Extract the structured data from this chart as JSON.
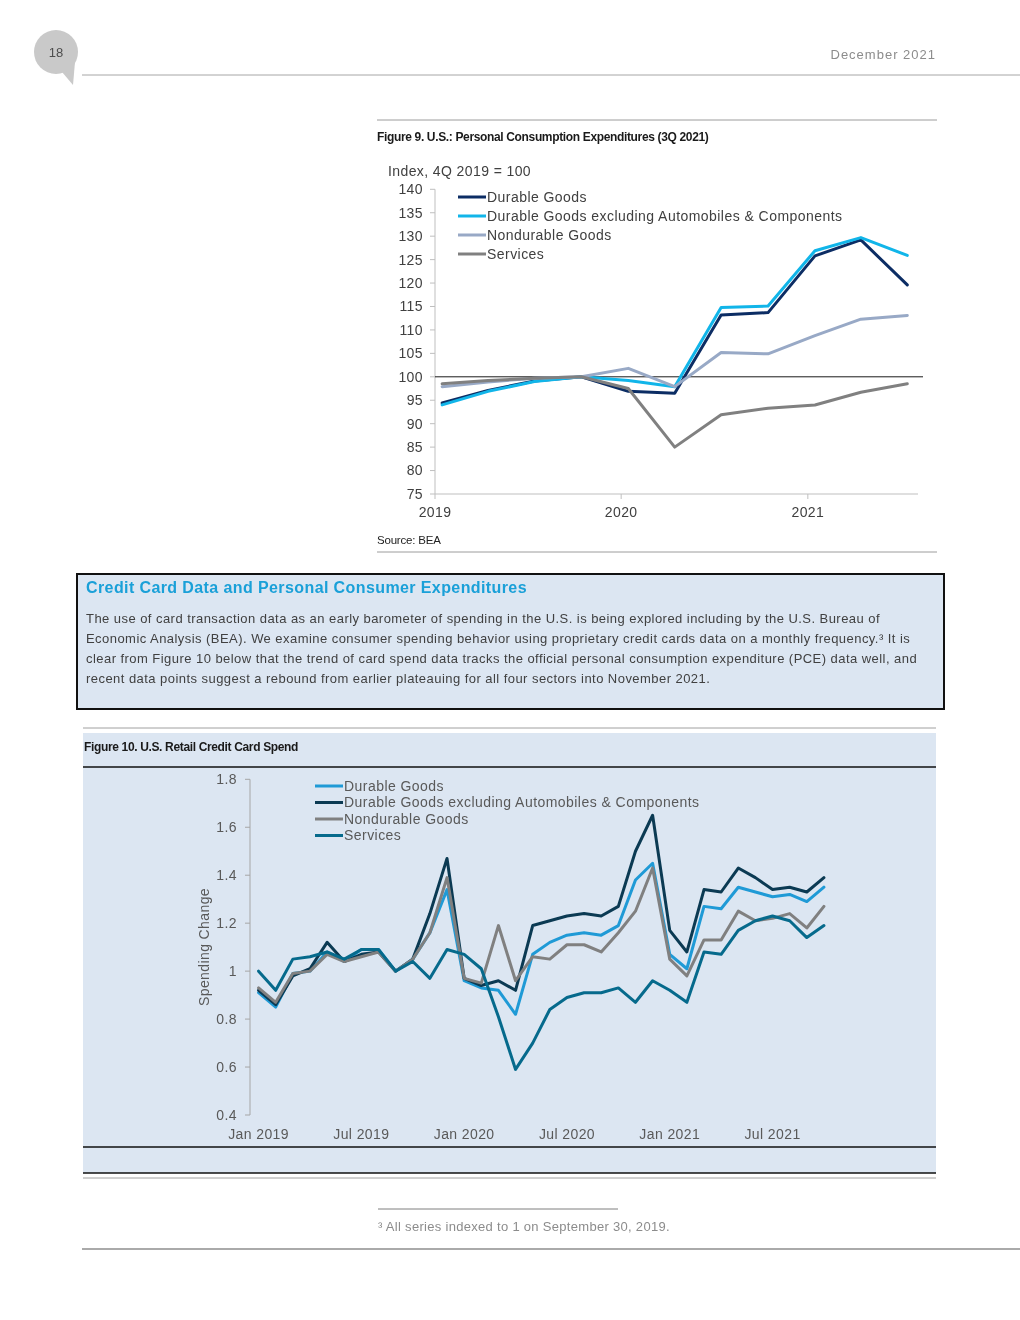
{
  "chart_data": [
    {
      "type": "line",
      "title": "Figure 9. U.S.: Personal Consumption Expenditures (3Q 2021)",
      "ylabel": "Index, 4Q 2019 = 100",
      "x": [
        "2019-01-15",
        "2019-04-15",
        "2019-07-15",
        "2019-10-15",
        "2020-01-15",
        "2020-04-15",
        "2020-07-15",
        "2020-10-15",
        "2021-01-15",
        "2021-04-15",
        "2021-07-15"
      ],
      "series": [
        {
          "name": "Durable Goods",
          "color": "#0c2d64",
          "values": [
            94.4,
            97.1,
            99.1,
            100,
            96.9,
            96.5,
            113.2,
            113.7,
            125.8,
            129.2,
            119.6
          ]
        },
        {
          "name": "Durable Goods excluding Automobiles & Components",
          "color": "#11b5e9",
          "values": [
            94.0,
            96.9,
            99.0,
            100,
            99.2,
            97.9,
            114.8,
            115.1,
            126.9,
            129.7,
            125.9
          ]
        },
        {
          "name": "Nondurable Goods",
          "color": "#98a9c6",
          "values": [
            97.9,
            98.9,
            99.7,
            100,
            101.8,
            97.9,
            105.2,
            104.9,
            108.8,
            112.3,
            113.1
          ]
        },
        {
          "name": "Services",
          "color": "#808080",
          "values": [
            98.5,
            99.2,
            99.7,
            100,
            97.5,
            85.0,
            91.9,
            93.3,
            94.0,
            96.7,
            98.5
          ]
        }
      ],
      "xlim": [
        "2019-01-01",
        "2021-08-05"
      ],
      "xticks": [
        {
          "value": "2019-01-01",
          "label": "2019"
        },
        {
          "value": "2020-01-01",
          "label": "2020"
        },
        {
          "value": "2021-01-01",
          "label": "2021"
        }
      ],
      "ylim": [
        75,
        140
      ],
      "yticks": [
        75,
        80,
        85,
        90,
        95,
        100,
        105,
        110,
        115,
        120,
        125,
        130,
        135,
        140
      ],
      "ref_lines": [
        {
          "axis": "y",
          "value": 100,
          "color": "#1a1a1a"
        }
      ],
      "legend": "top left",
      "annotations": [
        "Source: BEA",
        "18",
        "December 2021"
      ]
    },
    {
      "type": "other",
      "title": "Credit Card Data and Personal Consumer Expenditures",
      "annotations": [
        "The use of card transaction data as an early barometer of spending in the U.S. is being explored including by the U.S. Bureau of Economic Analysis (BEA). We examine consumer spending behavior using proprietary credit cards data on a monthly frequency.³ It is clear from Figure 10 below that the trend of card spend data tracks the official personal consumption expenditure (PCE) data well, and recent data points suggest a rebound from earlier plateauing for all four sectors into November 2021."
      ]
    },
    {
      "type": "line",
      "title": "Figure 10. U.S. Retail Credit Card Spend",
      "ylabel": "Spending Change",
      "categories": [
        "Jan 2019",
        null,
        null,
        null,
        null,
        null,
        "Jul 2019",
        null,
        null,
        null,
        null,
        null,
        "Jan 2020",
        null,
        null,
        null,
        null,
        null,
        "Jul 2020",
        null,
        null,
        null,
        null,
        null,
        "Jan 2021",
        null,
        null,
        null,
        null,
        null,
        "Jul 2021",
        null,
        null,
        null
      ],
      "series": [
        {
          "name": "Durable Goods",
          "color": "#1f9ad6",
          "values": [
            0.91,
            0.85,
            0.99,
            1.0,
            1.08,
            1.04,
            1.09,
            1.09,
            1.0,
            1.05,
            1.16,
            1.34,
            0.96,
            0.93,
            0.92,
            0.82,
            1.07,
            1.12,
            1.15,
            1.16,
            1.15,
            1.19,
            1.38,
            1.45,
            1.07,
            1.01,
            1.27,
            1.26,
            1.35,
            1.33,
            1.31,
            1.32,
            1.29,
            1.35
          ]
        },
        {
          "name": "Durable Goods excluding Automobiles & Components",
          "color": "#0b3a53",
          "values": [
            0.92,
            0.86,
            0.98,
            1.01,
            1.12,
            1.04,
            1.07,
            1.08,
            1.0,
            1.05,
            1.24,
            1.47,
            0.97,
            0.94,
            0.96,
            0.92,
            1.19,
            1.21,
            1.23,
            1.24,
            1.23,
            1.27,
            1.5,
            1.65,
            1.17,
            1.08,
            1.34,
            1.33,
            1.43,
            1.39,
            1.34,
            1.35,
            1.33,
            1.39
          ]
        },
        {
          "name": "Nondurable Goods",
          "color": "#808080",
          "values": [
            0.93,
            0.87,
            0.99,
            1.0,
            1.07,
            1.04,
            1.06,
            1.08,
            1.0,
            1.05,
            1.16,
            1.39,
            0.97,
            0.95,
            1.19,
            0.96,
            1.06,
            1.05,
            1.11,
            1.11,
            1.08,
            1.16,
            1.25,
            1.43,
            1.05,
            0.98,
            1.13,
            1.13,
            1.25,
            1.21,
            1.22,
            1.24,
            1.18,
            1.27
          ]
        },
        {
          "name": "Services",
          "color": "#066a8c",
          "values": [
            1.0,
            0.92,
            1.05,
            1.06,
            1.08,
            1.05,
            1.09,
            1.09,
            1.0,
            1.04,
            0.97,
            1.09,
            1.07,
            1.01,
            0.81,
            0.59,
            0.7,
            0.84,
            0.89,
            0.91,
            0.91,
            0.93,
            0.87,
            0.96,
            0.92,
            0.87,
            1.08,
            1.07,
            1.17,
            1.21,
            1.23,
            1.21,
            1.14,
            1.19
          ]
        }
      ],
      "ylim": [
        0.4,
        1.8
      ],
      "yticks": [
        0.4,
        0.6,
        0.8,
        1,
        1.2,
        1.4,
        1.6,
        1.8
      ],
      "legend": "top",
      "annotations": [
        "³ All series indexed to 1 on September 30, 2019."
      ]
    }
  ]
}
